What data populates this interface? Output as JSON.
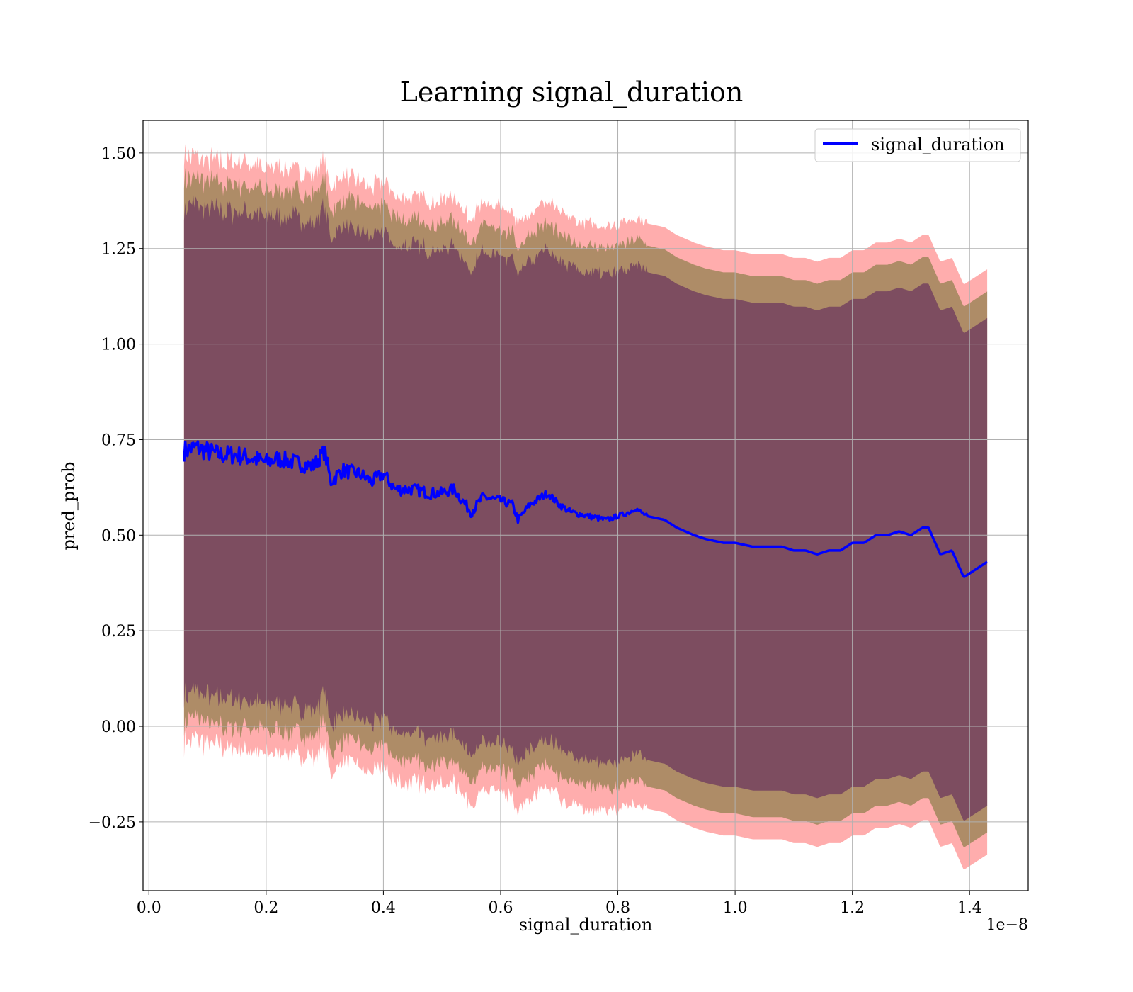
{
  "chart_data": {
    "type": "line",
    "title": "Learning signal_duration",
    "xlabel": "signal_duration",
    "ylabel": "pred_prob",
    "x_offset_label": "1e−8",
    "xlim": [
      -0.01,
      1.5
    ],
    "ylim": [
      -0.43,
      1.585
    ],
    "x_ticks": [
      0.0,
      0.2,
      0.4,
      0.6,
      0.8,
      1.0,
      1.2,
      1.4
    ],
    "x_tick_labels": [
      "0.0",
      "0.2",
      "0.4",
      "0.6",
      "0.8",
      "1.0",
      "1.2",
      "1.4"
    ],
    "y_ticks": [
      -0.25,
      0.0,
      0.25,
      0.5,
      0.75,
      1.0,
      1.25,
      1.5
    ],
    "y_tick_labels": [
      "−0.25",
      "0.00",
      "0.25",
      "0.50",
      "0.75",
      "1.00",
      "1.25",
      "1.50"
    ],
    "grid": true,
    "legend_position": "top-right",
    "colors": {
      "line": "#0000ff",
      "band_outer": "#ff0000",
      "band_middle": "#a0865a",
      "band_inner": "#7a4a60",
      "grid": "#b0b0b0"
    },
    "series": [
      {
        "name": "signal_duration",
        "x": [
          0.06,
          0.08,
          0.1,
          0.12,
          0.15,
          0.18,
          0.2,
          0.22,
          0.25,
          0.28,
          0.3,
          0.31,
          0.33,
          0.36,
          0.38,
          0.4,
          0.42,
          0.45,
          0.48,
          0.5,
          0.52,
          0.54,
          0.55,
          0.57,
          0.6,
          0.62,
          0.63,
          0.65,
          0.67,
          0.68,
          0.7,
          0.72,
          0.75,
          0.78,
          0.8,
          0.82,
          0.83,
          0.85,
          0.88,
          0.9,
          0.93,
          0.95,
          0.98,
          1.0,
          1.03,
          1.05,
          1.08,
          1.1,
          1.12,
          1.14,
          1.16,
          1.18,
          1.2,
          1.22,
          1.24,
          1.26,
          1.28,
          1.3,
          1.32,
          1.33,
          1.35,
          1.37,
          1.39,
          1.43
        ],
        "values": [
          0.72,
          0.73,
          0.72,
          0.71,
          0.71,
          0.7,
          0.69,
          0.7,
          0.69,
          0.68,
          0.72,
          0.64,
          0.67,
          0.66,
          0.64,
          0.66,
          0.62,
          0.62,
          0.61,
          0.61,
          0.62,
          0.58,
          0.56,
          0.6,
          0.59,
          0.58,
          0.54,
          0.58,
          0.6,
          0.61,
          0.58,
          0.56,
          0.55,
          0.54,
          0.55,
          0.56,
          0.57,
          0.55,
          0.54,
          0.52,
          0.5,
          0.49,
          0.48,
          0.48,
          0.47,
          0.47,
          0.47,
          0.46,
          0.46,
          0.45,
          0.46,
          0.46,
          0.48,
          0.48,
          0.5,
          0.5,
          0.51,
          0.5,
          0.52,
          0.52,
          0.45,
          0.46,
          0.39,
          0.43
        ]
      }
    ],
    "bands": [
      {
        "name": "outer",
        "sigma": 1.32
      },
      {
        "name": "middle",
        "sigma": 1.22
      },
      {
        "name": "inner",
        "sigma": 1.1
      }
    ],
    "noise_until_x": 0.85
  }
}
